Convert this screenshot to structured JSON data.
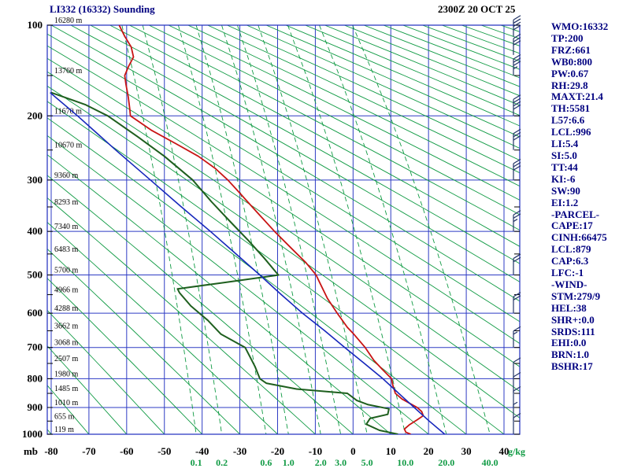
{
  "header": {
    "title": "LI332 (16332) Sounding",
    "timestamp": "2300Z 20 OCT 25"
  },
  "stats": {
    "lines": [
      "WMO:16332",
      "TP:200",
      "FRZ:661",
      "WB0:800",
      "PW:0.67",
      "RH:29.8",
      "MAXT:21.4",
      "TH:5581",
      "L57:6.6",
      "LCL:996",
      "LI:5.4",
      "SI:5.0",
      "TT:44",
      "KI:-6",
      "SW:90",
      "EI:1.2",
      "-PARCEL-",
      "CAPE:17",
      "CINH:66475",
      "LCL:879",
      "CAP:6.3",
      "LFC:-1",
      "-WIND-",
      "STM:279/9",
      "HEL:38",
      "SHR+:0.0",
      "SRDS:111",
      "EHI:0.0",
      "BRN:1.0",
      "BSHR:17"
    ]
  },
  "chart_data": {
    "type": "line",
    "chart_kind": "stuve-sounding",
    "title": "LI332 (16332) Sounding",
    "timestamp": "2300Z 20 OCT 25",
    "pressure_axis": {
      "label": "mb",
      "major_ticks": [
        100,
        200,
        300,
        400,
        500,
        600,
        700,
        800,
        900,
        1000
      ]
    },
    "temp_axis": {
      "ticks": [
        -80,
        -70,
        -60,
        -50,
        -40,
        -30,
        -20,
        -10,
        0,
        10,
        20,
        30,
        40
      ],
      "range": [
        -80,
        40
      ]
    },
    "mixing_ratios": [
      0.1,
      0.2,
      0.6,
      1.0,
      2.0,
      3.0,
      5.0,
      10.0,
      20.0,
      40.0
    ],
    "mixing_ratio_unit": "g/kg",
    "dry_adiabats": {
      "theta_min": -80,
      "theta_max": 330,
      "step": 10
    },
    "height_labels": [
      {
        "p": 100,
        "label": "16280 m"
      },
      {
        "p": 150,
        "label": "13760 m"
      },
      {
        "p": 200,
        "label": "11670 m"
      },
      {
        "p": 250,
        "label": "10670 m"
      },
      {
        "p": 300,
        "label": "9360 m"
      },
      {
        "p": 350,
        "label": "8293 m"
      },
      {
        "p": 400,
        "label": "7340 m"
      },
      {
        "p": 450,
        "label": "6483 m"
      },
      {
        "p": 500,
        "label": "5700 m"
      },
      {
        "p": 550,
        "label": "4966 m"
      },
      {
        "p": 600,
        "label": "4288 m"
      },
      {
        "p": 650,
        "label": "3662 m"
      },
      {
        "p": 700,
        "label": "3068 m"
      },
      {
        "p": 750,
        "label": "2507 m"
      },
      {
        "p": 800,
        "label": "1980 m"
      },
      {
        "p": 850,
        "label": "1485 m"
      },
      {
        "p": 900,
        "label": "1010 m"
      },
      {
        "p": 950,
        "label": "655 m"
      },
      {
        "p": 1000,
        "label": "119 m"
      }
    ],
    "series": [
      {
        "name": "temperature",
        "color": "#c81414",
        "width": 1.8,
        "points": [
          [
            1000,
            15.3
          ],
          [
            992,
            14.0
          ],
          [
            980,
            13.6
          ],
          [
            963,
            15.0
          ],
          [
            945,
            17.0
          ],
          [
            930,
            18.6
          ],
          [
            915,
            18.2
          ],
          [
            900,
            17.0
          ],
          [
            870,
            13.0
          ],
          [
            850,
            11.2
          ],
          [
            820,
            10.5
          ],
          [
            800,
            10.2
          ],
          [
            770,
            7.8
          ],
          [
            740,
            5.5
          ],
          [
            700,
            3.2
          ],
          [
            660,
            0.2
          ],
          [
            640,
            -1.5
          ],
          [
            600,
            -4.2
          ],
          [
            560,
            -6.8
          ],
          [
            520,
            -8.8
          ],
          [
            500,
            -9.8
          ],
          [
            470,
            -12.5
          ],
          [
            440,
            -16.0
          ],
          [
            400,
            -20.8
          ],
          [
            360,
            -25.5
          ],
          [
            320,
            -30.5
          ],
          [
            300,
            -33.2
          ],
          [
            280,
            -36.5
          ],
          [
            260,
            -41.0
          ],
          [
            240,
            -47.0
          ],
          [
            220,
            -53.5
          ],
          [
            200,
            -59.0
          ],
          [
            190,
            -59.2
          ],
          [
            175,
            -59.6
          ],
          [
            160,
            -60.2
          ],
          [
            150,
            -60.5
          ],
          [
            140,
            -59.5
          ],
          [
            130,
            -58.2
          ],
          [
            120,
            -58.8
          ],
          [
            110,
            -60.5
          ],
          [
            100,
            -62.0
          ]
        ]
      },
      {
        "name": "dewpoint",
        "color": "#1e5f1e",
        "width": 2.0,
        "points": [
          [
            1000,
            11.9
          ],
          [
            985,
            7.0
          ],
          [
            962,
            3.5
          ],
          [
            940,
            4.5
          ],
          [
            925,
            9.2
          ],
          [
            905,
            9.5
          ],
          [
            890,
            4.0
          ],
          [
            875,
            1.0
          ],
          [
            850,
            -1.5
          ],
          [
            835,
            -15.0
          ],
          [
            815,
            -23.0
          ],
          [
            800,
            -24.7
          ],
          [
            760,
            -26.0
          ],
          [
            700,
            -28.6
          ],
          [
            660,
            -35.0
          ],
          [
            620,
            -38.5
          ],
          [
            580,
            -43.0
          ],
          [
            545,
            -46.0
          ],
          [
            535,
            -46.5
          ],
          [
            520,
            -35.0
          ],
          [
            500,
            -19.8
          ],
          [
            460,
            -23.5
          ],
          [
            420,
            -27.7
          ],
          [
            380,
            -32.5
          ],
          [
            340,
            -37.5
          ],
          [
            300,
            -42.5
          ],
          [
            260,
            -50.0
          ],
          [
            230,
            -57.0
          ],
          [
            200,
            -65.0
          ],
          [
            185,
            -71.0
          ],
          [
            170,
            -80.0
          ]
        ]
      },
      {
        "name": "parcel",
        "color": "#1526bb",
        "width": 1.6,
        "points": [
          [
            1000,
            24.3
          ],
          [
            950,
            20.2
          ],
          [
            900,
            16.2
          ],
          [
            850,
            12.1
          ],
          [
            800,
            7.9
          ],
          [
            750,
            3.0
          ],
          [
            700,
            -2.2
          ],
          [
            650,
            -7.5
          ],
          [
            600,
            -13.4
          ],
          [
            550,
            -19.0
          ],
          [
            500,
            -24.7
          ],
          [
            450,
            -31.0
          ],
          [
            400,
            -37.8
          ],
          [
            350,
            -45.5
          ],
          [
            300,
            -53.7
          ],
          [
            250,
            -62.9
          ],
          [
            200,
            -73.0
          ],
          [
            170,
            -80.3
          ]
        ]
      }
    ],
    "wind_barbs": [
      {
        "p": 110,
        "full": 4,
        "half": 0
      },
      {
        "p": 128,
        "full": 3,
        "half": 0
      },
      {
        "p": 150,
        "full": 3,
        "half": 1
      },
      {
        "p": 200,
        "full": 4,
        "half": 0
      },
      {
        "p": 250,
        "full": 3,
        "half": 0
      },
      {
        "p": 300,
        "full": 3,
        "half": 0
      },
      {
        "p": 400,
        "full": 2,
        "half": 1
      },
      {
        "p": 500,
        "full": 2,
        "half": 0
      },
      {
        "p": 600,
        "full": 2,
        "half": 0
      },
      {
        "p": 700,
        "full": 1,
        "half": 1
      },
      {
        "p": 800,
        "full": 1,
        "half": 0
      },
      {
        "p": 850,
        "full": 1,
        "half": 0
      },
      {
        "p": 900,
        "full": 1,
        "half": 0
      },
      {
        "p": 950,
        "full": 0,
        "half": 1
      },
      {
        "p": 1000,
        "full": 1,
        "half": 0
      }
    ],
    "colors": {
      "grid": "#2e3bc4",
      "frame": "#2e3bc4",
      "adiabat": "#0f9a43",
      "mixing": "#0f9a43",
      "barb": "#223366",
      "axis_text": "#000000",
      "green_label": "#0f9a43",
      "stats_text": "#000080"
    }
  }
}
